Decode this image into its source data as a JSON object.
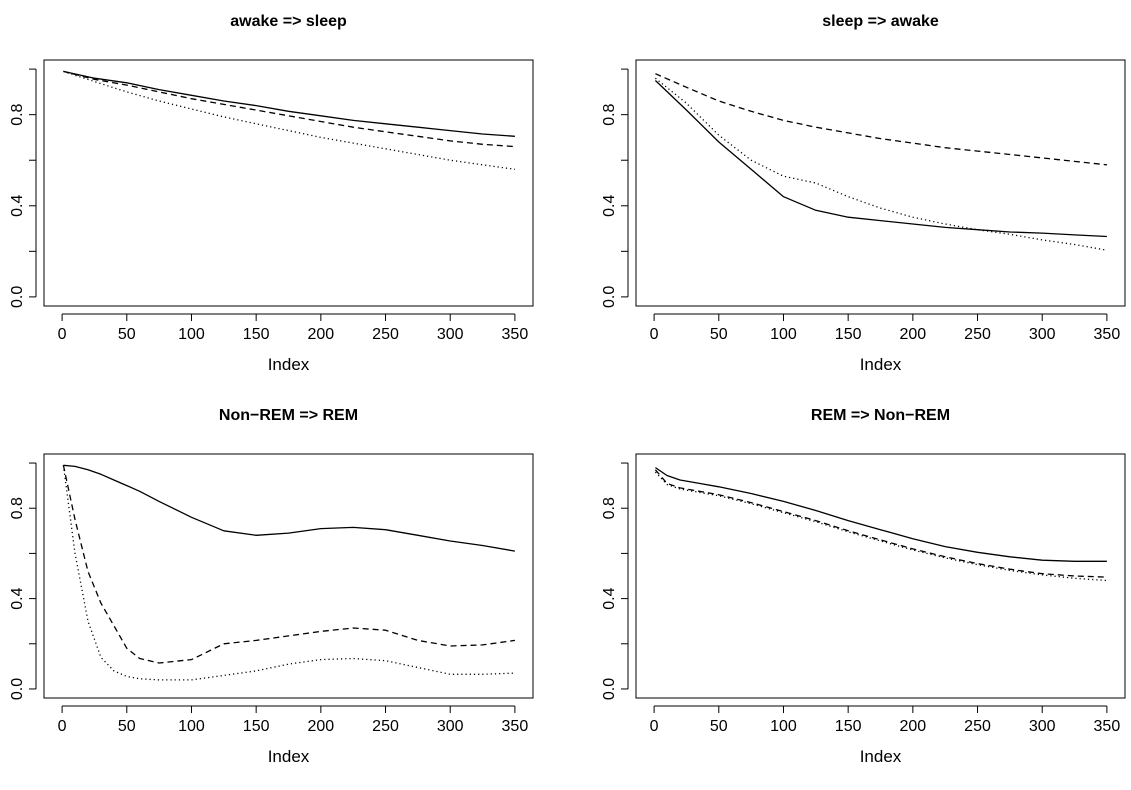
{
  "chart_data": [
    {
      "type": "line",
      "title": "awake => sleep",
      "xlabel": "Index",
      "ylabel": "",
      "xlim": [
        0,
        350
      ],
      "ylim": [
        0,
        1
      ],
      "xticks": [
        "0",
        "50",
        "100",
        "150",
        "200",
        "250",
        "300",
        "350"
      ],
      "yticks": [
        "0.0",
        "0.4",
        "0.8"
      ],
      "x": [
        1,
        25,
        50,
        75,
        100,
        125,
        150,
        175,
        200,
        225,
        250,
        275,
        300,
        325,
        350
      ],
      "series": [
        {
          "style": "solid",
          "values": [
            0.99,
            0.96,
            0.94,
            0.91,
            0.885,
            0.86,
            0.84,
            0.815,
            0.795,
            0.775,
            0.76,
            0.745,
            0.73,
            0.715,
            0.705
          ]
        },
        {
          "style": "dashed",
          "values": [
            0.99,
            0.955,
            0.93,
            0.9,
            0.87,
            0.845,
            0.82,
            0.795,
            0.77,
            0.745,
            0.725,
            0.705,
            0.685,
            0.67,
            0.66
          ]
        },
        {
          "style": "dotted",
          "values": [
            0.99,
            0.945,
            0.9,
            0.86,
            0.825,
            0.79,
            0.76,
            0.73,
            0.7,
            0.675,
            0.65,
            0.625,
            0.6,
            0.58,
            0.56
          ]
        }
      ]
    },
    {
      "type": "line",
      "title": "sleep => awake",
      "xlabel": "Index",
      "ylabel": "",
      "xlim": [
        0,
        350
      ],
      "ylim": [
        0,
        1
      ],
      "xticks": [
        "0",
        "50",
        "100",
        "150",
        "200",
        "250",
        "300",
        "350"
      ],
      "yticks": [
        "0.0",
        "0.4",
        "0.8"
      ],
      "x": [
        1,
        25,
        50,
        75,
        100,
        125,
        150,
        175,
        200,
        225,
        250,
        275,
        300,
        325,
        350
      ],
      "series": [
        {
          "style": "solid",
          "values": [
            0.95,
            0.82,
            0.68,
            0.56,
            0.44,
            0.38,
            0.35,
            0.335,
            0.32,
            0.305,
            0.295,
            0.285,
            0.28,
            0.272,
            0.265
          ]
        },
        {
          "style": "dashed",
          "values": [
            0.98,
            0.92,
            0.86,
            0.815,
            0.775,
            0.745,
            0.72,
            0.695,
            0.675,
            0.655,
            0.64,
            0.625,
            0.61,
            0.595,
            0.58
          ]
        },
        {
          "style": "dotted",
          "values": [
            0.96,
            0.85,
            0.71,
            0.6,
            0.53,
            0.5,
            0.44,
            0.39,
            0.35,
            0.32,
            0.295,
            0.275,
            0.25,
            0.23,
            0.205
          ]
        }
      ]
    },
    {
      "type": "line",
      "title": "Non−REM => REM",
      "xlabel": "Index",
      "ylabel": "",
      "xlim": [
        0,
        350
      ],
      "ylim": [
        0,
        1
      ],
      "xticks": [
        "0",
        "50",
        "100",
        "150",
        "200",
        "250",
        "300",
        "350"
      ],
      "yticks": [
        "0.0",
        "0.4",
        "0.8"
      ],
      "x": [
        1,
        10,
        20,
        30,
        40,
        50,
        60,
        75,
        100,
        125,
        150,
        175,
        200,
        225,
        250,
        275,
        300,
        325,
        350
      ],
      "series": [
        {
          "style": "solid",
          "values": [
            0.99,
            0.985,
            0.97,
            0.95,
            0.925,
            0.9,
            0.875,
            0.83,
            0.76,
            0.7,
            0.68,
            0.69,
            0.71,
            0.715,
            0.705,
            0.68,
            0.655,
            0.635,
            0.61
          ]
        },
        {
          "style": "dashed",
          "values": [
            0.99,
            0.75,
            0.52,
            0.38,
            0.28,
            0.18,
            0.135,
            0.115,
            0.13,
            0.2,
            0.215,
            0.235,
            0.255,
            0.27,
            0.26,
            0.215,
            0.19,
            0.195,
            0.215
          ]
        },
        {
          "style": "dotted",
          "values": [
            0.99,
            0.6,
            0.3,
            0.14,
            0.08,
            0.055,
            0.045,
            0.04,
            0.04,
            0.06,
            0.08,
            0.11,
            0.13,
            0.135,
            0.125,
            0.095,
            0.065,
            0.065,
            0.07
          ]
        }
      ]
    },
    {
      "type": "line",
      "title": "REM => Non−REM",
      "xlabel": "Index",
      "ylabel": "",
      "xlim": [
        0,
        350
      ],
      "ylim": [
        0,
        1
      ],
      "xticks": [
        "0",
        "50",
        "100",
        "150",
        "200",
        "250",
        "300",
        "350"
      ],
      "yticks": [
        "0.0",
        "0.4",
        "0.8"
      ],
      "x": [
        1,
        10,
        20,
        35,
        50,
        75,
        100,
        125,
        150,
        175,
        200,
        225,
        250,
        275,
        300,
        325,
        350
      ],
      "series": [
        {
          "style": "solid",
          "values": [
            0.98,
            0.945,
            0.925,
            0.91,
            0.895,
            0.865,
            0.83,
            0.79,
            0.745,
            0.705,
            0.665,
            0.63,
            0.605,
            0.585,
            0.57,
            0.565,
            0.565
          ]
        },
        {
          "style": "dashed",
          "values": [
            0.97,
            0.91,
            0.89,
            0.875,
            0.86,
            0.825,
            0.785,
            0.745,
            0.7,
            0.66,
            0.62,
            0.585,
            0.555,
            0.53,
            0.51,
            0.5,
            0.495
          ]
        },
        {
          "style": "dotted",
          "values": [
            0.96,
            0.905,
            0.885,
            0.87,
            0.855,
            0.82,
            0.78,
            0.74,
            0.695,
            0.655,
            0.615,
            0.58,
            0.55,
            0.525,
            0.505,
            0.49,
            0.48
          ]
        }
      ]
    }
  ]
}
